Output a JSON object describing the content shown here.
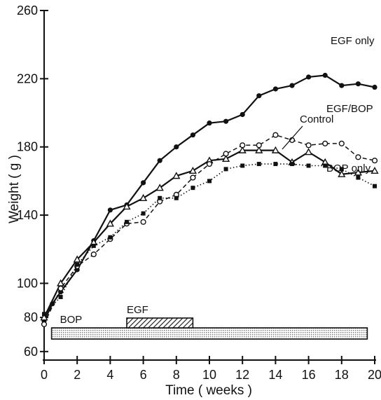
{
  "chart_data": {
    "type": "line",
    "xlabel": "Time ( weeks )",
    "ylabel": "Weight ( g )",
    "xlim": [
      0,
      20
    ],
    "ylim": [
      55,
      260
    ],
    "x_ticks": [
      0,
      2,
      4,
      6,
      8,
      10,
      12,
      14,
      16,
      18,
      20
    ],
    "y_ticks": [
      60,
      80,
      100,
      140,
      180,
      220,
      260
    ],
    "grid": false,
    "legend": "none",
    "series": [
      {
        "name": "EGF only",
        "marker": "filled-circle",
        "line": "solid",
        "x": [
          0,
          0.5,
          1,
          2,
          3,
          4,
          5,
          6,
          7,
          8,
          9,
          10,
          11,
          12,
          13,
          14,
          15,
          16,
          17,
          18,
          19,
          20
        ],
        "y": [
          78,
          88,
          95,
          108,
          125,
          143,
          146,
          159,
          172,
          180,
          187,
          194,
          195,
          199,
          210,
          214,
          216,
          221,
          222,
          216,
          217,
          215
        ]
      },
      {
        "name": "Control",
        "marker": "open-triangle",
        "line": "solid",
        "x": [
          0,
          1,
          2,
          3,
          4,
          5,
          6,
          7,
          8,
          9,
          10,
          11,
          12,
          13,
          14,
          15,
          16,
          17,
          18,
          19,
          20
        ],
        "y": [
          80,
          100,
          114,
          124,
          135,
          145,
          150,
          156,
          163,
          166,
          172,
          173,
          178,
          178,
          178,
          171,
          177,
          171,
          164,
          165,
          166
        ]
      },
      {
        "name": "EGF/BOP",
        "marker": "open-circle",
        "line": "dashed",
        "x": [
          0,
          1,
          2,
          3,
          4,
          5,
          6,
          7,
          8,
          9,
          10,
          11,
          12,
          13,
          14,
          15,
          16,
          17,
          18,
          19,
          20
        ],
        "y": [
          76,
          97,
          110,
          117,
          126,
          135,
          136,
          148,
          152,
          162,
          170,
          176,
          181,
          181,
          187,
          184,
          181,
          182,
          182,
          174,
          172
        ]
      },
      {
        "name": "BOP only",
        "marker": "filled-square",
        "line": "dotted",
        "x": [
          0,
          1,
          2,
          3,
          4,
          5,
          6,
          7,
          8,
          9,
          10,
          11,
          12,
          13,
          14,
          15,
          16,
          17,
          18,
          19,
          20
        ],
        "y": [
          82,
          92,
          111,
          122,
          127,
          136,
          141,
          150,
          150,
          156,
          160,
          167,
          169,
          170,
          170,
          170,
          169,
          169,
          167,
          162,
          157
        ]
      }
    ],
    "series_labels": [
      {
        "name": "EGF only",
        "text": "EGF only"
      },
      {
        "name": "Control",
        "text": "Control"
      },
      {
        "name": "EGF/BOP",
        "text": "EGF/BOP"
      },
      {
        "name": "BOP only",
        "text": "BOP only"
      }
    ],
    "treatment_bars": [
      {
        "label": "BOP",
        "start": 1,
        "end": 19,
        "pattern": "dotted"
      },
      {
        "label": "EGF",
        "start": 5,
        "end": 9,
        "pattern": "hatched"
      }
    ]
  }
}
